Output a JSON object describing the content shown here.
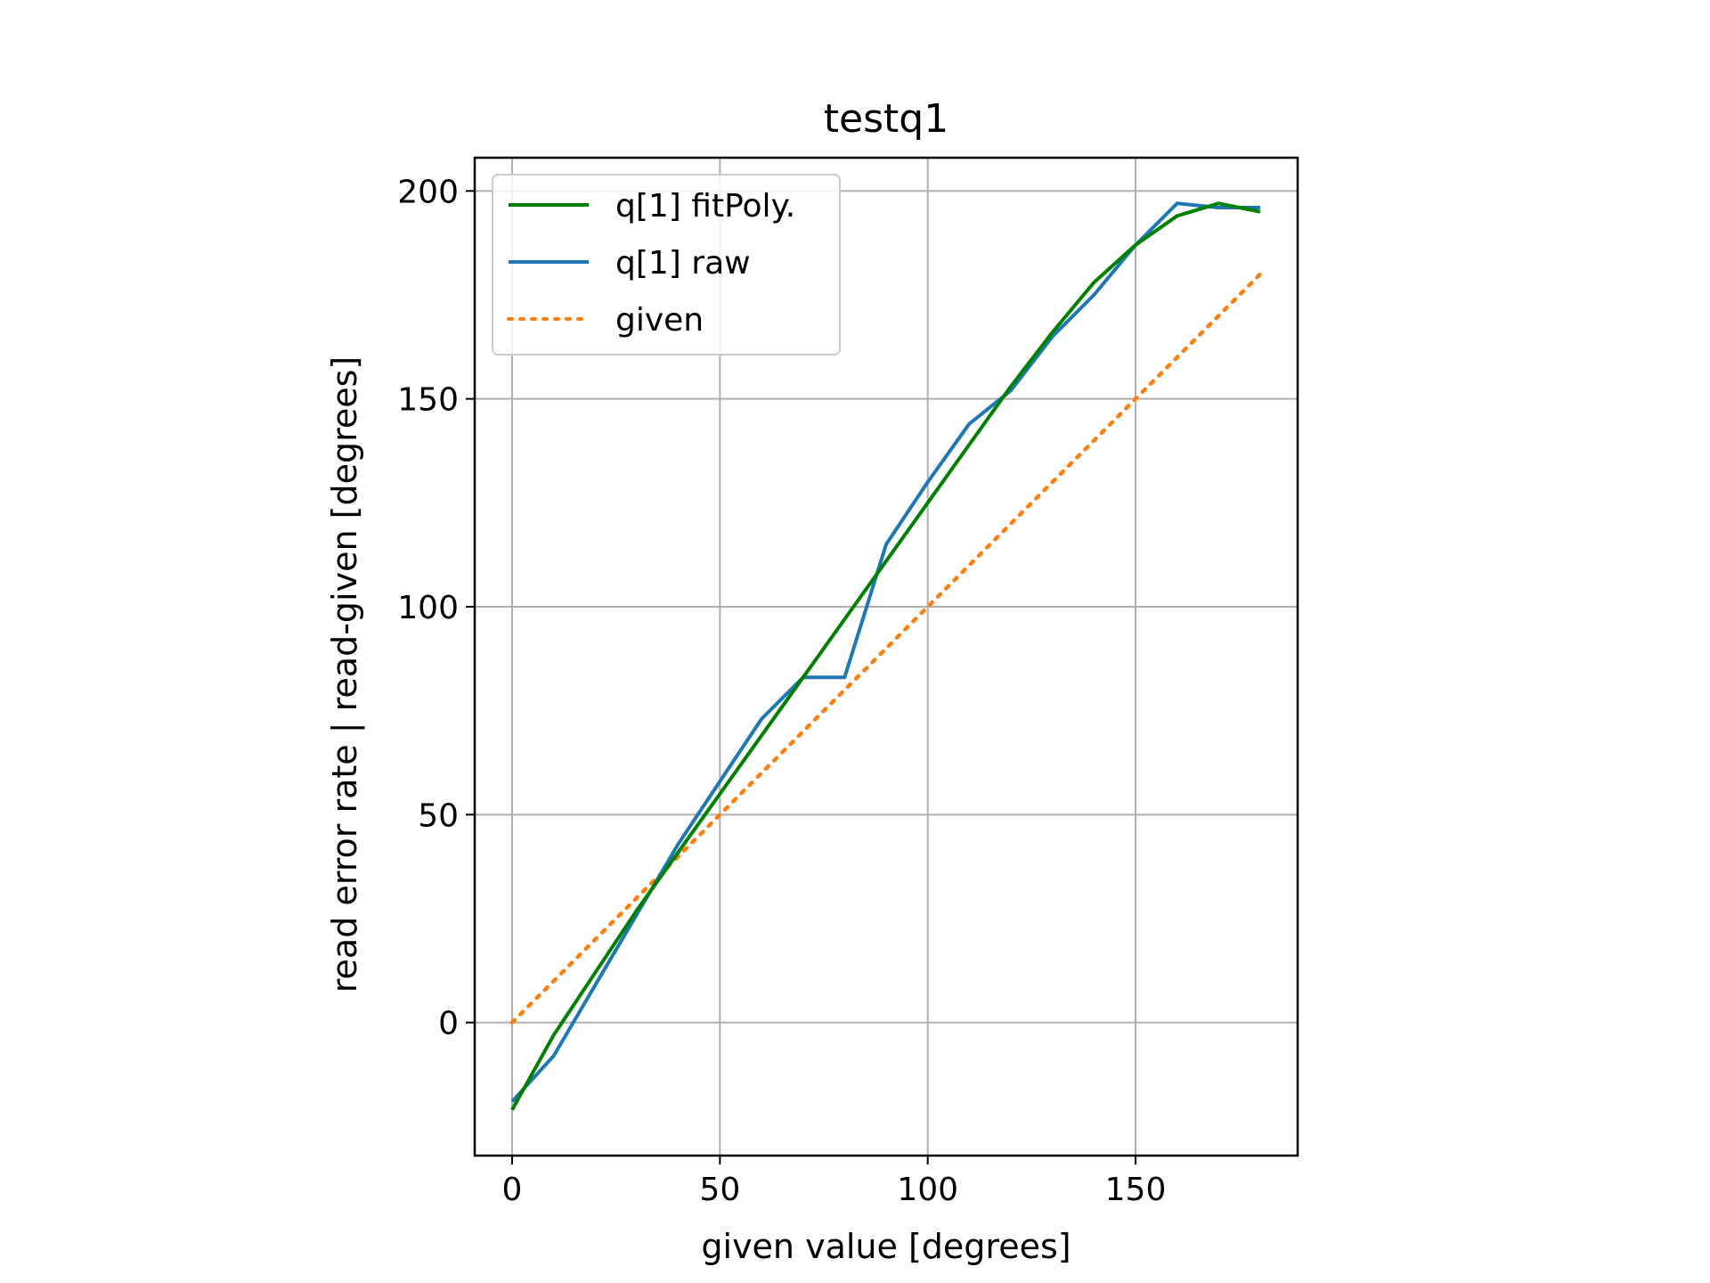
{
  "chart_data": {
    "type": "line",
    "title": "testq1",
    "xlabel": "given value [degrees]",
    "ylabel": "read error rate | read-given [degrees]",
    "xlim": [
      -9,
      189
    ],
    "ylim": [
      -32,
      208
    ],
    "xticks": [
      0,
      50,
      100,
      150
    ],
    "yticks": [
      0,
      50,
      100,
      150,
      200
    ],
    "grid": true,
    "legend_position": "top-left",
    "series": [
      {
        "name": "q[1] fitPoly.",
        "color": "#008000",
        "style": "solid",
        "x": [
          0,
          10,
          20,
          30,
          40,
          50,
          60,
          70,
          80,
          90,
          100,
          110,
          120,
          130,
          140,
          150,
          160,
          170,
          180
        ],
        "y": [
          -21,
          -3,
          12,
          27,
          41,
          55,
          69,
          83,
          97,
          111,
          125,
          139,
          153,
          166,
          178,
          187,
          194,
          197,
          195
        ]
      },
      {
        "name": "q[1] raw",
        "color": "#1f77b4",
        "style": "solid",
        "x": [
          0,
          10,
          20,
          30,
          40,
          50,
          60,
          70,
          80,
          90,
          100,
          110,
          120,
          130,
          140,
          150,
          160,
          170,
          180
        ],
        "y": [
          -19,
          -8,
          9,
          26,
          43,
          58,
          73,
          83,
          83,
          115,
          130,
          144,
          152,
          165,
          175,
          187,
          197,
          196,
          196
        ]
      },
      {
        "name": "given",
        "color": "#ff7f0e",
        "style": "dotted",
        "x": [
          0,
          180
        ],
        "y": [
          0,
          180
        ]
      }
    ]
  }
}
